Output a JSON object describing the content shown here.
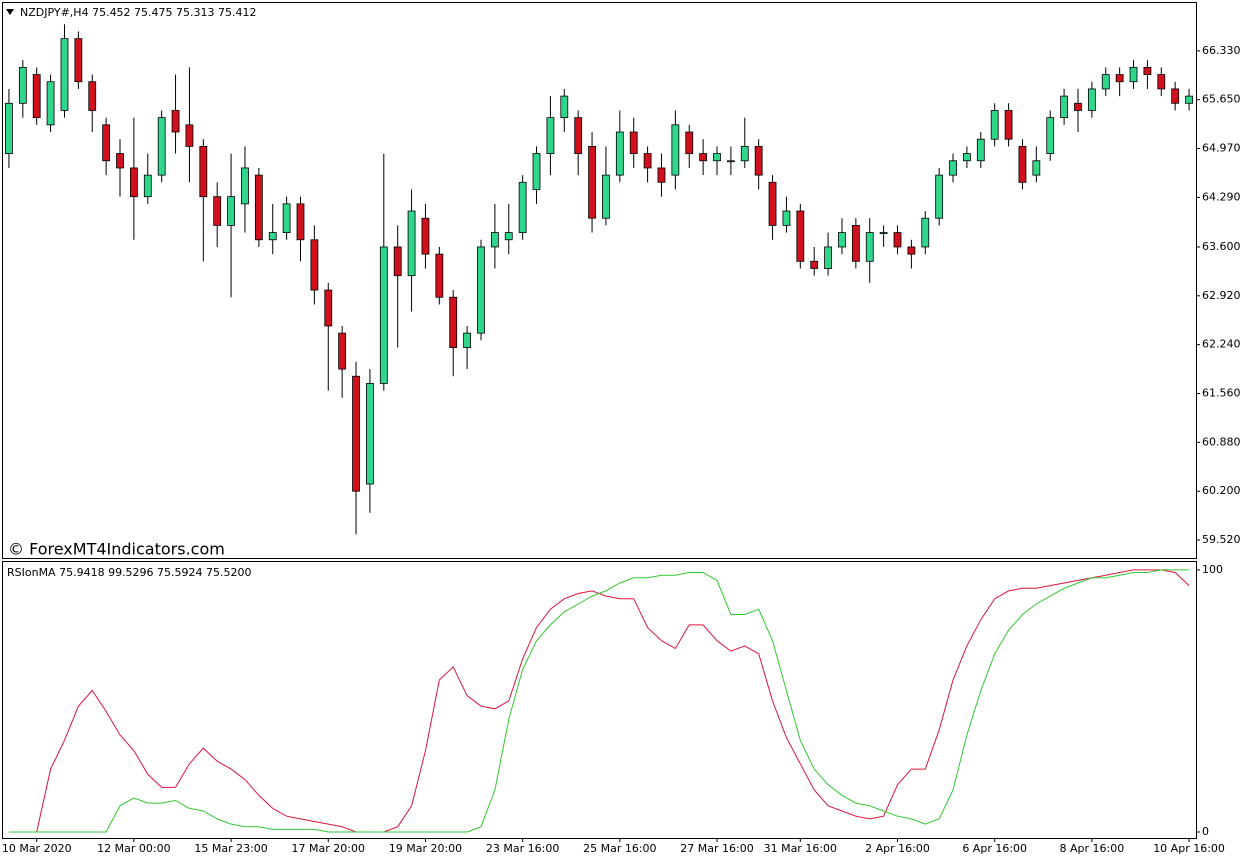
{
  "chart_data": [
    {
      "type": "candlestick",
      "header": "NZDJPY#,H4  75.452 75.475 75.313 75.412",
      "watermark": "© ForexMT4Indicators.com",
      "up_color": "#2fd68c",
      "down_color": "#d0101c",
      "categories": [
        null,
        null,
        "10 Mar 2020",
        null,
        null,
        null,
        null,
        null,
        null,
        "12 Mar 00:00",
        null,
        null,
        null,
        null,
        null,
        null,
        "15 Mar 23:00",
        null,
        null,
        null,
        null,
        null,
        null,
        "17 Mar 20:00",
        null,
        null,
        null,
        null,
        null,
        null,
        "19 Mar 20:00",
        null,
        null,
        null,
        null,
        null,
        null,
        "23 Mar 16:00",
        null,
        null,
        null,
        null,
        null,
        null,
        "25 Mar 16:00",
        null,
        null,
        null,
        null,
        null,
        null,
        "27 Mar 16:00",
        null,
        null,
        null,
        null,
        null,
        "31 Mar 16:00",
        null,
        null,
        null,
        null,
        null,
        null,
        "2 Apr 16:00",
        null,
        null,
        null,
        null,
        null,
        null,
        "6 Apr 16:00",
        null,
        null,
        null,
        null,
        null,
        null,
        "8 Apr 16:00",
        null,
        null,
        null,
        null,
        null,
        null,
        "10 Apr 16:00"
      ],
      "open": [
        64.9,
        65.6,
        66.0,
        65.3,
        65.5,
        66.5,
        65.9,
        65.3,
        64.9,
        64.7,
        64.3,
        64.6,
        65.5,
        65.3,
        65.0,
        64.3,
        63.9,
        64.2,
        64.6,
        63.7,
        63.8,
        64.2,
        63.7,
        63.0,
        62.4,
        61.8,
        60.3,
        61.7,
        63.6,
        63.2,
        64.0,
        63.5,
        62.9,
        62.2,
        62.4,
        63.6,
        63.7,
        63.8,
        64.4,
        64.9,
        65.4,
        65.4,
        65.0,
        64.0,
        64.6,
        65.2,
        64.9,
        64.7,
        64.6,
        65.2,
        64.9,
        64.8,
        64.8,
        64.8,
        65.0,
        64.5,
        63.9,
        64.1,
        63.4,
        63.3,
        63.6,
        63.9,
        63.4,
        63.8,
        63.8,
        63.6,
        63.6,
        64.0,
        64.6,
        64.8,
        64.8,
        65.1,
        65.5,
        65.0,
        64.6,
        64.9,
        65.4,
        65.6,
        65.5,
        65.8,
        66.0,
        65.9,
        66.1,
        66.0,
        65.8,
        65.6
      ],
      "high": [
        65.8,
        66.2,
        66.1,
        66.0,
        66.7,
        66.6,
        66.0,
        65.4,
        65.1,
        65.4,
        64.9,
        65.5,
        66.0,
        66.1,
        65.1,
        64.5,
        64.9,
        65.0,
        64.7,
        64.2,
        64.3,
        64.3,
        63.9,
        63.1,
        62.5,
        62.0,
        61.9,
        64.9,
        63.9,
        64.4,
        64.2,
        63.6,
        63.0,
        62.5,
        63.7,
        64.2,
        64.2,
        64.6,
        65.0,
        65.7,
        65.8,
        65.5,
        65.2,
        65.0,
        65.5,
        65.4,
        65.0,
        64.9,
        65.5,
        65.3,
        65.1,
        65.0,
        65.0,
        65.4,
        65.1,
        64.6,
        64.3,
        64.2,
        63.6,
        63.8,
        64.0,
        64.0,
        64.0,
        63.9,
        63.9,
        63.7,
        64.1,
        64.7,
        64.9,
        65.0,
        65.2,
        65.6,
        65.6,
        65.1,
        65.0,
        65.5,
        65.8,
        65.8,
        65.9,
        66.1,
        66.1,
        66.2,
        66.2,
        66.1,
        65.9,
        65.8
      ],
      "low": [
        64.7,
        65.4,
        65.3,
        65.2,
        65.4,
        65.8,
        65.2,
        64.6,
        64.3,
        63.7,
        64.2,
        64.5,
        64.9,
        64.5,
        63.4,
        63.6,
        62.9,
        63.8,
        63.6,
        63.5,
        63.7,
        63.4,
        62.8,
        61.6,
        61.5,
        59.6,
        59.9,
        61.6,
        62.2,
        62.7,
        63.3,
        62.8,
        61.8,
        61.9,
        62.3,
        63.3,
        63.5,
        63.7,
        64.2,
        64.6,
        65.2,
        64.6,
        63.8,
        63.9,
        64.5,
        64.7,
        64.5,
        64.3,
        64.4,
        64.7,
        64.6,
        64.6,
        64.6,
        64.7,
        64.4,
        63.7,
        63.8,
        63.3,
        63.2,
        63.2,
        63.5,
        63.3,
        63.1,
        63.6,
        63.5,
        63.3,
        63.5,
        63.9,
        64.5,
        64.7,
        64.7,
        65.0,
        65.0,
        64.4,
        64.5,
        64.8,
        65.3,
        65.2,
        65.4,
        65.7,
        65.7,
        65.8,
        65.8,
        65.7,
        65.5,
        65.5
      ],
      "close": [
        65.6,
        66.1,
        65.4,
        65.9,
        66.5,
        65.9,
        65.5,
        64.8,
        64.7,
        64.3,
        64.6,
        65.4,
        65.2,
        65.0,
        64.3,
        63.9,
        64.3,
        64.7,
        63.7,
        63.8,
        64.2,
        63.7,
        63.0,
        62.5,
        61.9,
        60.2,
        61.7,
        63.6,
        63.2,
        64.1,
        63.5,
        62.9,
        62.2,
        62.4,
        63.6,
        63.8,
        63.8,
        64.5,
        64.9,
        65.4,
        65.7,
        64.9,
        64.0,
        64.6,
        65.2,
        64.9,
        64.7,
        64.5,
        65.3,
        64.9,
        64.8,
        64.9,
        64.8,
        65.0,
        64.6,
        63.9,
        64.1,
        63.4,
        63.3,
        63.6,
        63.8,
        63.4,
        63.8,
        63.8,
        63.6,
        63.5,
        64.0,
        64.6,
        64.8,
        64.9,
        65.1,
        65.5,
        65.1,
        64.5,
        64.8,
        65.4,
        65.7,
        65.5,
        65.8,
        66.0,
        65.9,
        66.1,
        66.0,
        65.8,
        65.6,
        65.7
      ],
      "ylim": [
        59.27,
        67.01
      ],
      "yticks": [
        {
          "value": 66.33,
          "label": "66.330"
        },
        {
          "value": 65.65,
          "label": "65.650"
        },
        {
          "value": 64.97,
          "label": "64.970"
        },
        {
          "value": 64.29,
          "label": "64.290"
        },
        {
          "value": 63.6,
          "label": "63.600"
        },
        {
          "value": 62.92,
          "label": "62.920"
        },
        {
          "value": 62.24,
          "label": "62.240"
        },
        {
          "value": 61.56,
          "label": "61.560"
        },
        {
          "value": 60.88,
          "label": "60.880"
        },
        {
          "value": 60.2,
          "label": "60.200"
        },
        {
          "value": 59.52,
          "label": "59.520"
        }
      ]
    },
    {
      "type": "line",
      "title": "RSIonMA 75.9418 99.5296 75.5924 75.5200",
      "series": [
        {
          "color": "#dc143c",
          "values": [
            0,
            0,
            0,
            24,
            35,
            48,
            54,
            46,
            37,
            31,
            22,
            17,
            17,
            26,
            32,
            27,
            24,
            20,
            14,
            9,
            6,
            5,
            4,
            3,
            2,
            0,
            0,
            0,
            2,
            10,
            31,
            58,
            63,
            52,
            48,
            47,
            50,
            66,
            78,
            85,
            89,
            91,
            92,
            90,
            89,
            89,
            78,
            73,
            70,
            79,
            79,
            73,
            69,
            71,
            68,
            50,
            36,
            26,
            16,
            10,
            8,
            6,
            5,
            6,
            18,
            24,
            24,
            39,
            58,
            71,
            81,
            89,
            92,
            93,
            93,
            94,
            95,
            96,
            97,
            98,
            99,
            100,
            100,
            100,
            99,
            94
          ]
        },
        {
          "color": "#32c832",
          "values": [
            0,
            0,
            0,
            0,
            0,
            0,
            0,
            0,
            10,
            13,
            11,
            11,
            12,
            9,
            8,
            5,
            3,
            2,
            2,
            1,
            1,
            1,
            1,
            0,
            0,
            0,
            0,
            0,
            0,
            0,
            0,
            0,
            0,
            0,
            2,
            16,
            43,
            62,
            73,
            79,
            84,
            87,
            90,
            92,
            95,
            97,
            97,
            98,
            98,
            99,
            99,
            96,
            83,
            83,
            85,
            73,
            54,
            35,
            24,
            18,
            14,
            11,
            10,
            8,
            6,
            5,
            3,
            5,
            16,
            37,
            54,
            68,
            77,
            83,
            87,
            90,
            93,
            95,
            97,
            97,
            98,
            99,
            99,
            100,
            100,
            100
          ]
        }
      ],
      "ylim": [
        -2.3,
        103.4
      ],
      "yticks": [
        100,
        0
      ]
    }
  ]
}
